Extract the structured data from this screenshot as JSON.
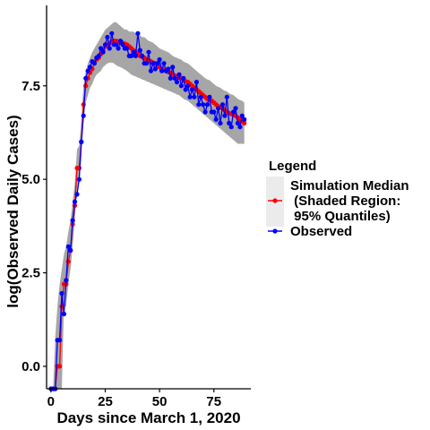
{
  "chart_data": {
    "type": "line",
    "title": "",
    "xlabel": "Days since March 1, 2020",
    "ylabel": "log(Observed Daily Cases)",
    "xlim": [
      -2,
      92
    ],
    "ylim": [
      -0.6,
      9.65
    ],
    "x_ticks": [
      0,
      25,
      50,
      75
    ],
    "x_tick_labels": [
      "0",
      "25",
      "50",
      "75"
    ],
    "y_ticks": [
      0,
      2.5,
      5,
      7.5
    ],
    "y_tick_labels": [
      "0.0",
      "2.5",
      "5.0",
      "7.5"
    ],
    "grid": false,
    "legend": {
      "title": "Legend",
      "position": "right",
      "entries": [
        {
          "lines": [
            "Simulation Median",
            " (Shaded Region:",
            " 95% Quantiles)"
          ]
        },
        {
          "lines": [
            "Observed"
          ]
        }
      ]
    },
    "series": [
      {
        "legend_index": 0,
        "color": "#ff0000",
        "band_color": "#a6a6a6",
        "x": [
          0,
          1,
          2,
          3,
          4,
          5,
          6,
          7,
          8,
          9,
          10,
          11,
          12,
          13,
          14,
          15,
          16,
          17,
          18,
          19,
          20,
          21,
          22,
          23,
          24,
          25,
          26,
          27,
          28,
          29,
          30,
          31,
          32,
          33,
          34,
          35,
          36,
          37,
          38,
          39,
          40,
          41,
          42,
          43,
          44,
          45,
          46,
          47,
          48,
          49,
          50,
          51,
          52,
          53,
          54,
          55,
          56,
          57,
          58,
          59,
          60,
          61,
          62,
          63,
          64,
          65,
          66,
          67,
          68,
          69,
          70,
          71,
          72,
          73,
          74,
          75,
          76,
          77,
          78,
          79,
          80,
          81,
          82,
          83,
          84,
          85,
          86,
          87,
          88,
          89
        ],
        "values": [
          -0.6,
          -0.6,
          -0.6,
          0,
          0,
          1.6,
          2.2,
          2.2,
          2.8,
          3.1,
          3.8,
          4.3,
          5.3,
          5.3,
          6.0,
          7.0,
          7.5,
          7.7,
          7.85,
          7.95,
          8.1,
          8.2,
          8.25,
          8.35,
          8.45,
          8.55,
          8.6,
          8.65,
          8.68,
          8.7,
          8.7,
          8.68,
          8.67,
          8.65,
          8.62,
          8.6,
          8.55,
          8.5,
          8.45,
          8.4,
          8.35,
          8.3,
          8.27,
          8.25,
          8.2,
          8.18,
          8.15,
          8.12,
          8.1,
          8.05,
          8.0,
          7.95,
          7.92,
          7.9,
          7.87,
          7.85,
          7.8,
          7.77,
          7.75,
          7.72,
          7.7,
          7.65,
          7.62,
          7.6,
          7.55,
          7.5,
          7.45,
          7.4,
          7.35,
          7.3,
          7.25,
          7.2,
          7.15,
          7.12,
          7.1,
          7.05,
          7.0,
          6.95,
          6.92,
          6.9,
          6.85,
          6.8,
          6.77,
          6.75,
          6.72,
          6.7,
          6.65,
          6.6,
          6.55,
          6.5
        ],
        "band_lower": [
          -0.6,
          -0.6,
          -0.6,
          -0.6,
          -0.6,
          -0.6,
          1.6,
          1.6,
          2.2,
          2.6,
          3.2,
          3.9,
          4.7,
          4.9,
          5.6,
          6.6,
          7.05,
          7.25,
          7.45,
          7.55,
          7.7,
          7.8,
          7.85,
          7.9,
          8.0,
          8.05,
          8.1,
          8.12,
          8.12,
          8.1,
          8.05,
          8.02,
          8.0,
          7.97,
          7.93,
          7.9,
          7.85,
          7.8,
          7.77,
          7.75,
          7.72,
          7.7,
          7.67,
          7.65,
          7.62,
          7.6,
          7.57,
          7.55,
          7.52,
          7.5,
          7.47,
          7.45,
          7.42,
          7.4,
          7.37,
          7.35,
          7.32,
          7.3,
          7.27,
          7.25,
          7.2,
          7.15,
          7.12,
          7.1,
          7.05,
          7.0,
          6.95,
          6.9,
          6.85,
          6.8,
          6.75,
          6.7,
          6.65,
          6.6,
          6.55,
          6.5,
          6.45,
          6.4,
          6.35,
          6.3,
          6.25,
          6.2,
          6.15,
          6.1,
          6.05,
          6.0,
          5.95,
          5.95,
          5.95,
          5.95
        ],
        "band_upper": [
          -0.6,
          -0.6,
          0.8,
          1.6,
          2.2,
          2.6,
          3.0,
          3.2,
          3.6,
          3.9,
          4.4,
          4.9,
          5.8,
          5.9,
          6.6,
          7.5,
          7.9,
          8.1,
          8.25,
          8.4,
          8.5,
          8.6,
          8.7,
          8.8,
          8.9,
          9.0,
          9.05,
          9.1,
          9.15,
          9.2,
          9.2,
          9.15,
          9.1,
          9.05,
          9.0,
          9.0,
          8.95,
          8.95,
          8.95,
          8.9,
          8.85,
          8.85,
          8.8,
          8.8,
          8.75,
          8.7,
          8.68,
          8.65,
          8.6,
          8.55,
          8.5,
          8.47,
          8.45,
          8.42,
          8.4,
          8.35,
          8.3,
          8.27,
          8.25,
          8.22,
          8.2,
          8.15,
          8.12,
          8.1,
          8.05,
          8.0,
          7.95,
          7.9,
          7.85,
          7.8,
          7.75,
          7.7,
          7.67,
          7.65,
          7.6,
          7.55,
          7.5,
          7.47,
          7.45,
          7.4,
          7.37,
          7.35,
          7.3,
          7.27,
          7.25,
          7.2,
          7.15,
          7.12,
          7.1,
          7.05
        ]
      },
      {
        "legend_index": 1,
        "color": "#0000ff",
        "x": [
          0,
          1,
          2,
          3,
          4,
          5,
          6,
          7,
          8,
          9,
          10,
          11,
          12,
          13,
          14,
          15,
          16,
          17,
          18,
          19,
          20,
          21,
          22,
          23,
          24,
          25,
          26,
          27,
          28,
          29,
          30,
          31,
          32,
          33,
          34,
          35,
          36,
          37,
          38,
          39,
          40,
          41,
          42,
          43,
          44,
          45,
          46,
          47,
          48,
          49,
          50,
          51,
          52,
          53,
          54,
          55,
          56,
          57,
          58,
          59,
          60,
          61,
          62,
          63,
          64,
          65,
          66,
          67,
          68,
          69,
          70,
          71,
          72,
          73,
          74,
          75,
          76,
          77,
          78,
          79,
          80,
          81,
          82,
          83,
          84,
          85,
          86,
          87,
          88,
          89
        ],
        "values": [
          -0.6,
          -0.6,
          -0.6,
          0.7,
          0.7,
          1.95,
          1.4,
          2.3,
          3.2,
          3.1,
          3.9,
          4.4,
          4.6,
          5.0,
          6.0,
          6.7,
          7.7,
          7.9,
          8.0,
          8.15,
          8.1,
          8.25,
          8.3,
          8.5,
          8.4,
          8.6,
          8.8,
          8.5,
          8.9,
          8.6,
          8.6,
          8.5,
          8.7,
          8.6,
          8.5,
          8.5,
          8.3,
          8.3,
          8.4,
          8.3,
          8.9,
          8.45,
          8.3,
          8.1,
          8.1,
          8.4,
          7.9,
          8.1,
          7.95,
          8.1,
          8.2,
          7.9,
          8.1,
          7.9,
          7.95,
          7.7,
          8.0,
          7.7,
          7.6,
          7.8,
          7.5,
          7.7,
          7.4,
          7.5,
          7.2,
          7.4,
          7.2,
          7.6,
          7.0,
          7.2,
          7.0,
          6.8,
          7.0,
          7.2,
          6.8,
          6.8,
          6.6,
          6.9,
          6.5,
          7.0,
          6.7,
          7.2,
          6.5,
          6.4,
          6.8,
          6.9,
          6.5,
          6.4,
          6.7,
          6.6
        ]
      }
    ]
  }
}
